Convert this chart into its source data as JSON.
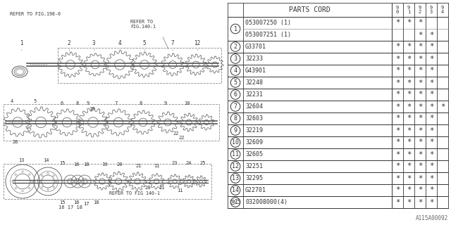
{
  "part_number_label": "PARTS CORD",
  "year_cols": [
    "9\n0",
    "9\n1",
    "9\n2",
    "9\n3",
    "9\n4"
  ],
  "rows": [
    {
      "num": "1",
      "parts": [
        "053007250 (1)",
        "053007251 (1)"
      ],
      "marks": [
        [
          "*",
          "*",
          "*",
          "",
          ""
        ],
        [
          "",
          "",
          "*",
          "*",
          ""
        ]
      ]
    },
    {
      "num": "2",
      "parts": [
        "G33701"
      ],
      "marks": [
        [
          "*",
          "*",
          "*",
          "*",
          ""
        ]
      ]
    },
    {
      "num": "3",
      "parts": [
        "32233"
      ],
      "marks": [
        [
          "*",
          "*",
          "*",
          "*",
          ""
        ]
      ]
    },
    {
      "num": "4",
      "parts": [
        "G43901"
      ],
      "marks": [
        [
          "*",
          "*",
          "*",
          "*",
          ""
        ]
      ]
    },
    {
      "num": "5",
      "parts": [
        "32248"
      ],
      "marks": [
        [
          "*",
          "*",
          "*",
          "*",
          ""
        ]
      ]
    },
    {
      "num": "6",
      "parts": [
        "32231"
      ],
      "marks": [
        [
          "*",
          "*",
          "*",
          "*",
          ""
        ]
      ]
    },
    {
      "num": "7",
      "parts": [
        "32604"
      ],
      "marks": [
        [
          "*",
          "*",
          "*",
          "*",
          "*"
        ]
      ]
    },
    {
      "num": "8",
      "parts": [
        "32603"
      ],
      "marks": [
        [
          "*",
          "*",
          "*",
          "*",
          ""
        ]
      ]
    },
    {
      "num": "9",
      "parts": [
        "32219"
      ],
      "marks": [
        [
          "*",
          "*",
          "*",
          "*",
          ""
        ]
      ]
    },
    {
      "num": "10",
      "parts": [
        "32609"
      ],
      "marks": [
        [
          "*",
          "*",
          "*",
          "*",
          ""
        ]
      ]
    },
    {
      "num": "11",
      "parts": [
        "32605"
      ],
      "marks": [
        [
          "*",
          "*",
          "*",
          "*",
          ""
        ]
      ]
    },
    {
      "num": "12",
      "parts": [
        "32251"
      ],
      "marks": [
        [
          "*",
          "*",
          "*",
          "*",
          ""
        ]
      ]
    },
    {
      "num": "13",
      "parts": [
        "32295"
      ],
      "marks": [
        [
          "*",
          "*",
          "*",
          "*",
          ""
        ]
      ]
    },
    {
      "num": "14",
      "parts": [
        "G22701"
      ],
      "marks": [
        [
          "*",
          "*",
          "*",
          "*",
          ""
        ]
      ]
    },
    {
      "num": "15",
      "parts": [
        "032008000(4)"
      ],
      "marks": [
        [
          "*",
          "*",
          "*",
          "*",
          ""
        ]
      ]
    }
  ],
  "footnote": "A115A00092",
  "bg_color": "#ffffff",
  "diagram_bg": "#e8e8e8",
  "lc": "#555555",
  "tc": "#333333",
  "fn_size": 6.0,
  "hdr_size": 7.0
}
